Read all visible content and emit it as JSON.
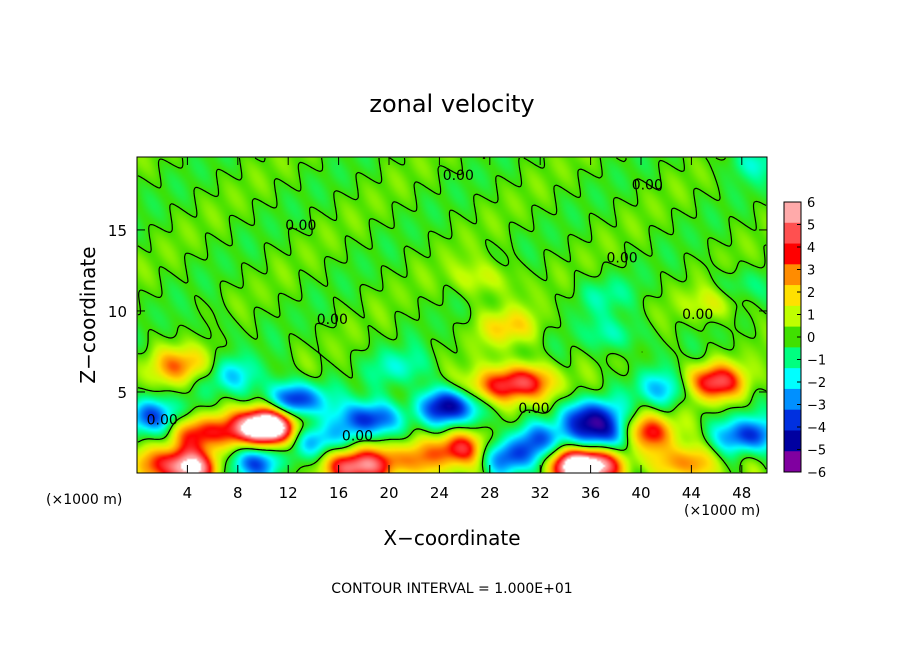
{
  "chart_data": {
    "type": "heatmap",
    "title": "zonal velocity",
    "xlabel": "X−coordinate",
    "ylabel": "Z−coordinate",
    "x_unit_left": "(×1000 m)",
    "x_unit_right": "(×1000 m)",
    "footer": "CONTOUR INTERVAL = 1.000E+01",
    "xlim": [
      0,
      50
    ],
    "ylim": [
      0,
      19.5
    ],
    "x_ticks": [
      4,
      8,
      12,
      16,
      20,
      24,
      28,
      32,
      36,
      40,
      44,
      48
    ],
    "y_ticks": [
      5,
      10,
      15
    ],
    "colorbar": {
      "ticks": [
        6,
        5,
        4,
        3,
        2,
        1,
        0,
        -1,
        -2,
        -3,
        -4,
        -5,
        -6
      ],
      "tick_labels": [
        "6",
        "5",
        "4",
        "3",
        "2",
        "1",
        "0",
        "−1",
        "−2",
        "−3",
        "−4",
        "−5",
        "−6"
      ],
      "colors": [
        "#ffaaaa",
        "#ff5050",
        "#ff0000",
        "#ff8c00",
        "#ffe000",
        "#c0ff00",
        "#40e000",
        "#00ff80",
        "#00ffff",
        "#0090ff",
        "#0030e0",
        "#0000a0",
        "#8000a0"
      ]
    },
    "contour_labels": [
      {
        "text": "0.00",
        "x": 25.5,
        "z": 18.4
      },
      {
        "text": "0.00",
        "x": 40.5,
        "z": 17.8
      },
      {
        "text": "0.00",
        "x": 13.0,
        "z": 15.3
      },
      {
        "text": "0.00",
        "x": 38.5,
        "z": 13.3
      },
      {
        "text": "0.00",
        "x": 15.5,
        "z": 9.5
      },
      {
        "text": "0.00",
        "x": 44.5,
        "z": 9.8
      },
      {
        "text": "0.00",
        "x": 31.5,
        "z": 4.0
      },
      {
        "text": "0.00",
        "x": 17.5,
        "z": 2.3
      },
      {
        "text": "0.00",
        "x": 2.0,
        "z": 3.3
      }
    ],
    "features": [
      {
        "x": 10.0,
        "z": 2.7,
        "v": 6
      },
      {
        "x": 4.5,
        "z": 0.3,
        "v": 6
      },
      {
        "x": 17.5,
        "z": 0.4,
        "v": 6
      },
      {
        "x": 26.8,
        "z": 5.0,
        "v": 6
      },
      {
        "x": 35.0,
        "z": 0.4,
        "v": 6
      },
      {
        "x": 10.5,
        "z": 3.0,
        "v": 4.5
      },
      {
        "x": 5.0,
        "z": 2.5,
        "v": 4
      },
      {
        "x": 30.5,
        "z": 5.6,
        "v": 5
      },
      {
        "x": 40.2,
        "z": 2.5,
        "v": 4.5
      },
      {
        "x": 45.8,
        "z": 5.6,
        "v": 5
      },
      {
        "x": 25.5,
        "z": 1.5,
        "v": 4.5
      },
      {
        "x": 36.0,
        "z": 0.5,
        "v": 4
      },
      {
        "x": 43.5,
        "z": 0.6,
        "v": 3.5
      },
      {
        "x": 21.5,
        "z": 0.8,
        "v": 3
      },
      {
        "x": 1.5,
        "z": 0.7,
        "v": 2.5
      },
      {
        "x": 3.5,
        "z": 6.6,
        "v": 3
      },
      {
        "x": 29.5,
        "z": 9.0,
        "v": 2
      },
      {
        "x": 27.5,
        "z": 12.0,
        "v": 1.5
      },
      {
        "x": 46.0,
        "z": 10.5,
        "v": 1.5
      },
      {
        "x": 12.5,
        "z": 4.5,
        "v": -4.5
      },
      {
        "x": 18.5,
        "z": 3.3,
        "v": -4.5
      },
      {
        "x": 24.5,
        "z": 4.0,
        "v": -4
      },
      {
        "x": 26.0,
        "z": 4.8,
        "v": -5
      },
      {
        "x": 36.0,
        "z": 3.5,
        "v": -4
      },
      {
        "x": 37.5,
        "z": 2.3,
        "v": -4.5
      },
      {
        "x": 48.5,
        "z": 2.3,
        "v": -4
      },
      {
        "x": 9.0,
        "z": 0.6,
        "v": -3.5
      },
      {
        "x": 29.5,
        "z": 1.0,
        "v": -4
      },
      {
        "x": 42.0,
        "z": 5.2,
        "v": -2.5
      },
      {
        "x": 1.0,
        "z": 3.5,
        "v": -3.5
      },
      {
        "x": 14.5,
        "z": 2.0,
        "v": -3
      },
      {
        "x": 32.0,
        "z": 2.2,
        "v": -3
      },
      {
        "x": 7.5,
        "z": 6.0,
        "v": -2
      },
      {
        "x": 21.0,
        "z": 6.5,
        "v": -1.5
      },
      {
        "x": 38.0,
        "z": 8.5,
        "v": -1.5
      },
      {
        "x": 37.0,
        "z": 11.0,
        "v": -1
      },
      {
        "x": 47.5,
        "z": 11.5,
        "v": -1
      },
      {
        "x": 49.0,
        "z": 19.2,
        "v": -1.5
      },
      {
        "x": 6.0,
        "z": 9.0,
        "v": -0.5
      }
    ]
  }
}
